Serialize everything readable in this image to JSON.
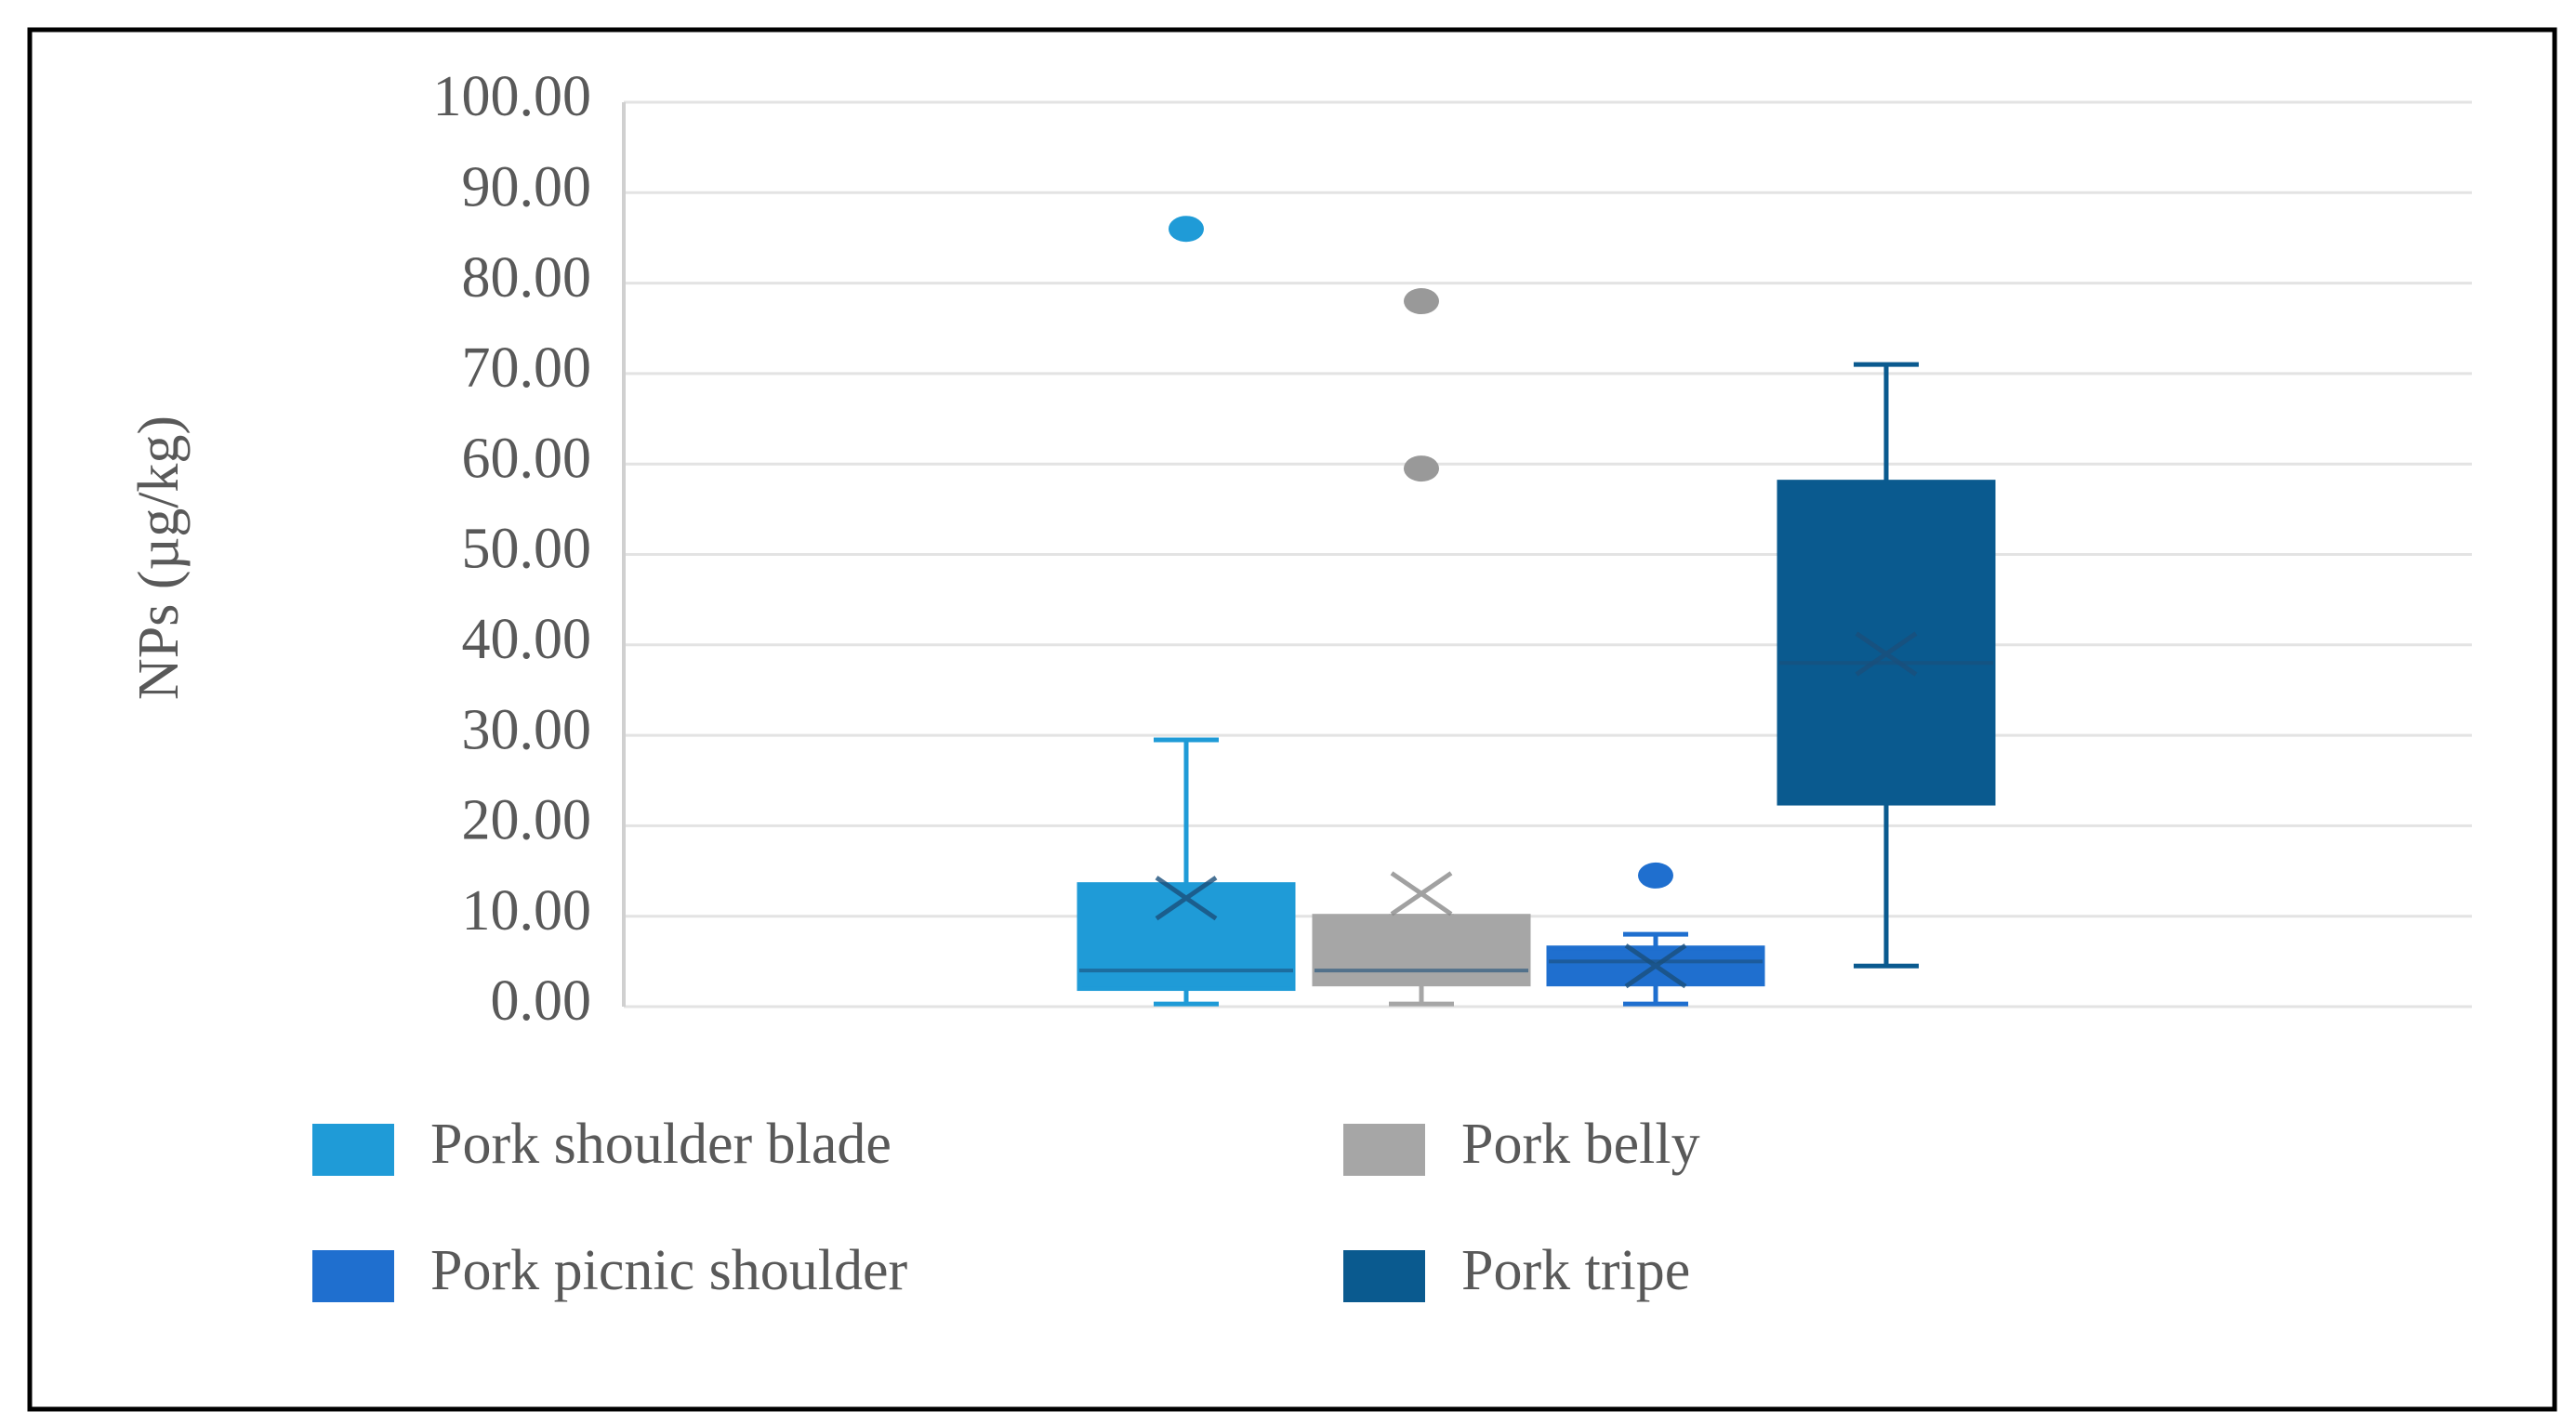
{
  "chart_data": {
    "type": "box",
    "y_label": "NPs (µg/kg)",
    "ylim": [
      0,
      100
    ],
    "yticks": [
      {
        "value": 0,
        "label": "0.00"
      },
      {
        "value": 10,
        "label": "10.00"
      },
      {
        "value": 20,
        "label": "20.00"
      },
      {
        "value": 30,
        "label": "30.00"
      },
      {
        "value": 40,
        "label": "40.00"
      },
      {
        "value": 50,
        "label": "50.00"
      },
      {
        "value": 60,
        "label": "60.00"
      },
      {
        "value": 70,
        "label": "70.00"
      },
      {
        "value": 80,
        "label": "80.00"
      },
      {
        "value": 90,
        "label": "90.00"
      },
      {
        "value": 100,
        "label": "100.00"
      }
    ],
    "grid": true,
    "series": [
      {
        "name": "Pork shoulder blade",
        "color": "#1f9bd7",
        "min": 0.3,
        "q1": 2,
        "median": 4,
        "q3": 13.5,
        "max": 29.5,
        "mean": 12,
        "outliers": [
          86
        ]
      },
      {
        "name": "Pork belly",
        "color": "#a6a6a6",
        "min": 0.3,
        "q1": 2.5,
        "median": 4,
        "q3": 10,
        "max": 10,
        "mean": 12.5,
        "outliers": [
          78,
          59.5
        ]
      },
      {
        "name": "Pork picnic shoulder",
        "color": "#1f6fcf",
        "min": 0.3,
        "q1": 2.5,
        "median": 5,
        "q3": 6.5,
        "max": 8,
        "mean": 4.5,
        "outliers": [
          14.5
        ]
      },
      {
        "name": "Pork tripe",
        "color": "#0a5a8f",
        "min": 4.5,
        "q1": 22.5,
        "median": 38,
        "q3": 58,
        "max": 71,
        "mean": 39,
        "outliers": []
      }
    ]
  }
}
